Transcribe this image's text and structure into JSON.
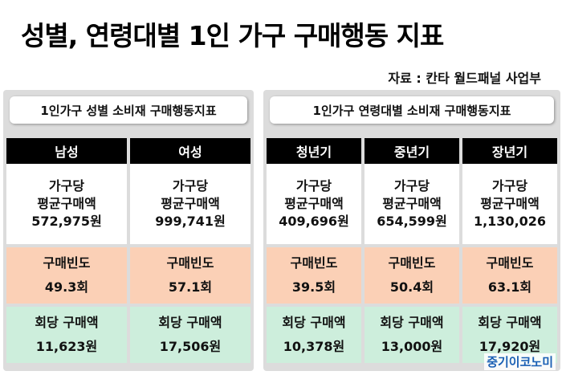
{
  "title": "성별, 연령대별 1인 가구 구매행동 지표",
  "source": "자료 : 칸타 월드패널 사업부",
  "left_panel": {
    "title": "1인가구 성별 소비재 구매행동지표",
    "columns": [
      {
        "header": "남성",
        "avg_label_1": "가구당",
        "avg_label_2": "평균구매액",
        "avg_value": "572,975원",
        "freq_label": "구매빈도",
        "freq_value": "49.3회",
        "per_label": "회당 구매액",
        "per_value": "11,623원"
      },
      {
        "header": "여성",
        "avg_label_1": "가구당",
        "avg_label_2": "평균구매액",
        "avg_value": "999,741원",
        "freq_label": "구매빈도",
        "freq_value": "57.1회",
        "per_label": "회당 구매액",
        "per_value": "17,506원"
      }
    ]
  },
  "right_panel": {
    "title": "1인가구 연령대별 소비재 구매행동지표",
    "columns": [
      {
        "header": "청년기",
        "avg_label_1": "가구당",
        "avg_label_2": "평균구매액",
        "avg_value": "409,696원",
        "freq_label": "구매빈도",
        "freq_value": "39.5회",
        "per_label": "회당 구매액",
        "per_value": "10,378원"
      },
      {
        "header": "중년기",
        "avg_label_1": "가구당",
        "avg_label_2": "평균구매액",
        "avg_value": "654,599원",
        "freq_label": "구매빈도",
        "freq_value": "50.4회",
        "per_label": "회당 구매액",
        "per_value": "13,000원"
      },
      {
        "header": "장년기",
        "avg_label_1": "가구당",
        "avg_label_2": "평균구매액",
        "avg_value": "1,130,026",
        "freq_label": "구매빈도",
        "freq_value": "63.1회",
        "per_label": "회당 구매액",
        "per_value": "17,920원"
      }
    ]
  },
  "brand": "중기이코노미",
  "colors": {
    "header_bg": "#000000",
    "freq_bg": "#fbd0b6",
    "per_bg": "#cdeedc",
    "panel_bg": "#dcdcdc",
    "brand": "#1a5fb4"
  }
}
